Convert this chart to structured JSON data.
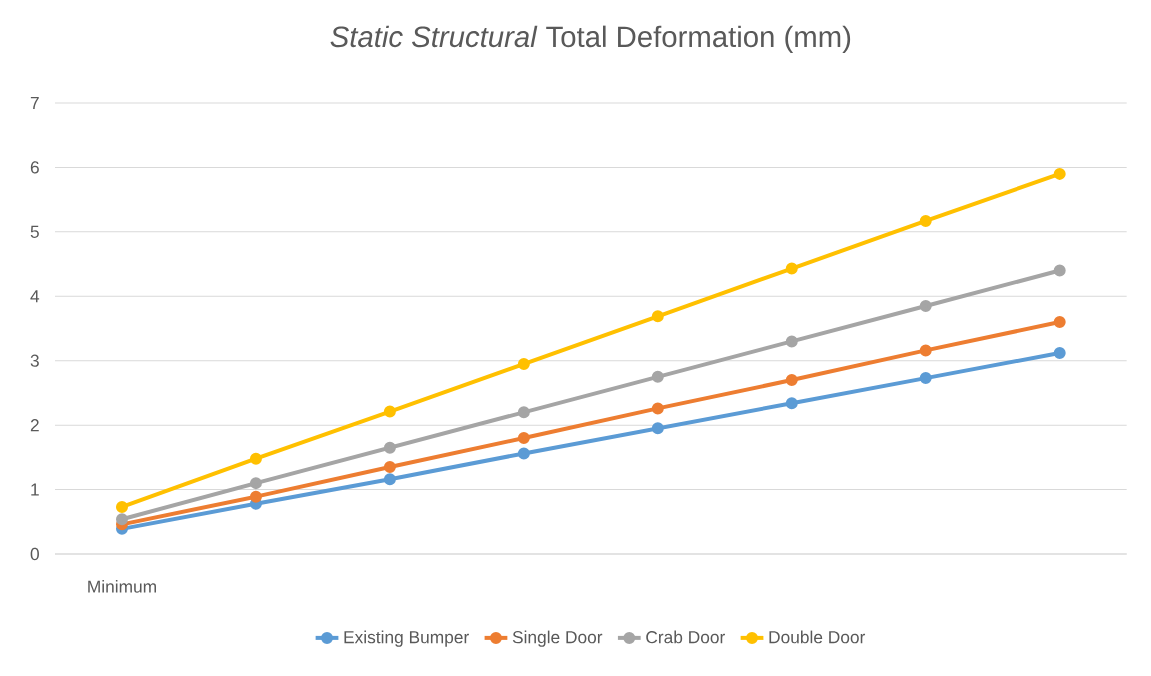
{
  "chart_data": {
    "type": "line",
    "title": "*Static Structural* Total Deformation (mm)",
    "categories": [
      "Minimum",
      null,
      null,
      null,
      null,
      null,
      null,
      null
    ],
    "series": [
      {
        "name": "Existing Bumper",
        "color": "#5b9bd5",
        "values": [
          0.39,
          0.78,
          1.16,
          1.56,
          1.95,
          2.34,
          2.73,
          3.12
        ]
      },
      {
        "name": "Single Door",
        "color": "#ed7d31",
        "values": [
          0.46,
          0.89,
          1.35,
          1.8,
          2.26,
          2.7,
          3.16,
          3.6
        ]
      },
      {
        "name": "Crab Door",
        "color": "#a5a5a5",
        "values": [
          0.54,
          1.1,
          1.65,
          2.2,
          2.75,
          3.3,
          3.85,
          4.4
        ]
      },
      {
        "name": "Double Door",
        "color": "#ffc000",
        "values": [
          0.73,
          1.48,
          2.21,
          2.95,
          3.69,
          4.43,
          5.17,
          5.9
        ]
      }
    ],
    "ylim": [
      0,
      7
    ],
    "yticks": [
      0,
      1,
      2,
      3,
      4,
      5,
      6,
      7
    ],
    "grid": "y",
    "legend": "bottom",
    "marker": "circle"
  }
}
